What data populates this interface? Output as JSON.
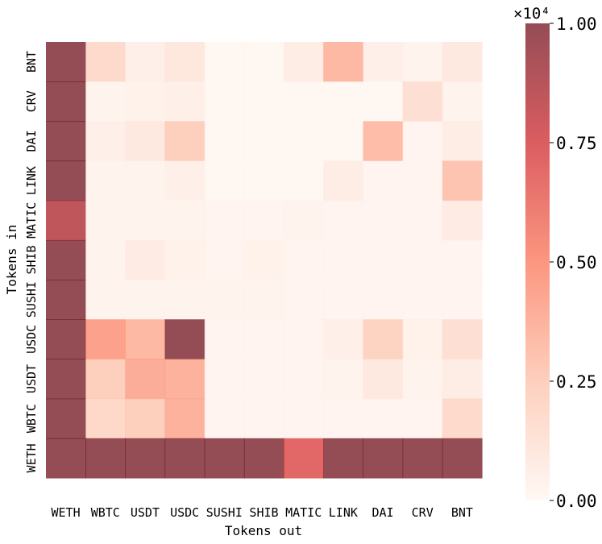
{
  "chart_data": {
    "type": "heatmap",
    "xlabel": "Tokens out",
    "ylabel": "Tokens in",
    "x_categories": [
      "WETH",
      "WBTC",
      "USDT",
      "USDC",
      "SUSHI",
      "SHIB",
      "MATIC",
      "LINK",
      "DAI",
      "CRV",
      "BNT"
    ],
    "y_categories": [
      "BNT",
      "CRV",
      "DAI",
      "LINK",
      "MATIC",
      "SHIB",
      "SUSHI",
      "USDC",
      "USDT",
      "WBTC",
      "WETH"
    ],
    "values": [
      [
        10000,
        1800,
        500,
        1000,
        100,
        100,
        700,
        3500,
        500,
        300,
        900
      ],
      [
        10000,
        300,
        400,
        500,
        100,
        100,
        100,
        100,
        100,
        1500,
        300
      ],
      [
        10000,
        500,
        900,
        2500,
        100,
        100,
        100,
        100,
        3300,
        200,
        700
      ],
      [
        10000,
        300,
        300,
        500,
        100,
        100,
        100,
        700,
        200,
        200,
        3000
      ],
      [
        8500,
        300,
        300,
        300,
        200,
        200,
        300,
        200,
        200,
        200,
        800
      ],
      [
        10000,
        300,
        800,
        400,
        200,
        400,
        200,
        200,
        200,
        200,
        200
      ],
      [
        10000,
        300,
        300,
        300,
        300,
        300,
        200,
        200,
        200,
        200,
        200
      ],
      [
        10000,
        4500,
        3500,
        10000,
        200,
        200,
        200,
        500,
        2300,
        400,
        1500
      ],
      [
        10000,
        2500,
        4000,
        3800,
        200,
        200,
        200,
        300,
        900,
        300,
        700
      ],
      [
        10000,
        2000,
        2500,
        3800,
        200,
        200,
        200,
        200,
        200,
        200,
        1800
      ],
      [
        10000,
        10000,
        10000,
        10000,
        10000,
        10000,
        7000,
        10000,
        10000,
        10000,
        10000
      ]
    ],
    "colorbar": {
      "range": [
        0,
        10000
      ],
      "ticks": [
        "0.00",
        "0.25",
        "0.50",
        "0.75",
        "1.00"
      ],
      "scale_label": "×10⁴",
      "colors": [
        "#fff5f0",
        "#fcbba1",
        "#fb6a4a",
        "#cb181d",
        "#67000d"
      ]
    },
    "cell_opacity": 0.7
  }
}
